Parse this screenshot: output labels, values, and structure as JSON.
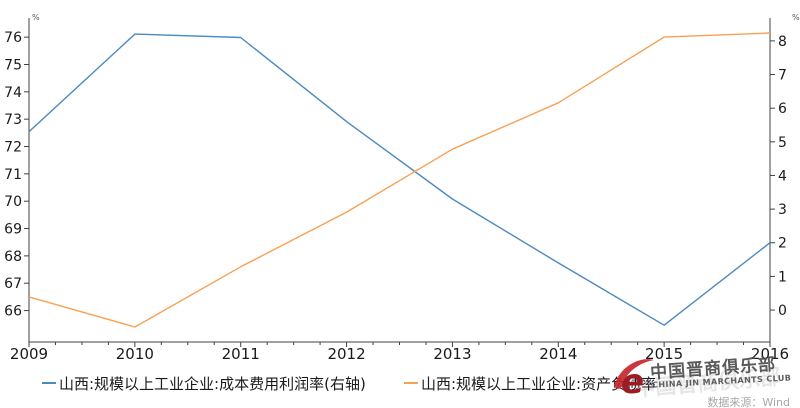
{
  "chart_data": {
    "type": "line",
    "title": "",
    "x": [
      2009,
      2010,
      2011,
      2012,
      2013,
      2014,
      2015,
      2016
    ],
    "x_tick_labels": [
      "2009",
      "2010",
      "2011",
      "2012",
      "2013",
      "2014",
      "2015",
      "2016"
    ],
    "minor_ticks_between_years": 3,
    "grid": false,
    "legend_position": "bottom",
    "series": [
      {
        "name": "山西:规模以上工业企业:成本费用利润率(右轴)",
        "axis": "right",
        "color": "#4d8ac0",
        "values": [
          5.3,
          8.2,
          8.1,
          5.6,
          3.3,
          1.4,
          -0.45,
          2.0
        ]
      },
      {
        "name": "山西:规模以上工业企业:资产负债率",
        "axis": "left",
        "color": "#f7a155",
        "values": [
          66.5,
          65.4,
          67.6,
          69.6,
          71.9,
          73.6,
          76.0,
          76.15
        ]
      }
    ],
    "left_axis": {
      "unit": "%",
      "ticks": [
        66,
        67,
        68,
        69,
        70,
        71,
        72,
        73,
        74,
        75,
        76
      ],
      "range": [
        64.85,
        76.7
      ]
    },
    "right_axis": {
      "unit": "%",
      "ticks": [
        0,
        1,
        2,
        3,
        4,
        5,
        6,
        7,
        8
      ],
      "range": [
        -0.95,
        8.68
      ]
    }
  },
  "watermark": {
    "title_cn": "中国晋商俱乐部",
    "title_en": "CHINA JIN MARCHANTS CLUB",
    "ghost_text": "中国晋商俱乐部",
    "logo_letter": "e",
    "logo_color": "#c5272f",
    "logo_letter_color": "#9e1b23"
  },
  "source": {
    "label": "数据来源：",
    "value": "Wind"
  },
  "colors": {
    "axis_line": "#404040",
    "tick_label": "#1a1a1a",
    "unit_label": "#555555",
    "legend_text": "#1a1a1a",
    "source_text": "#a8a8a8"
  }
}
